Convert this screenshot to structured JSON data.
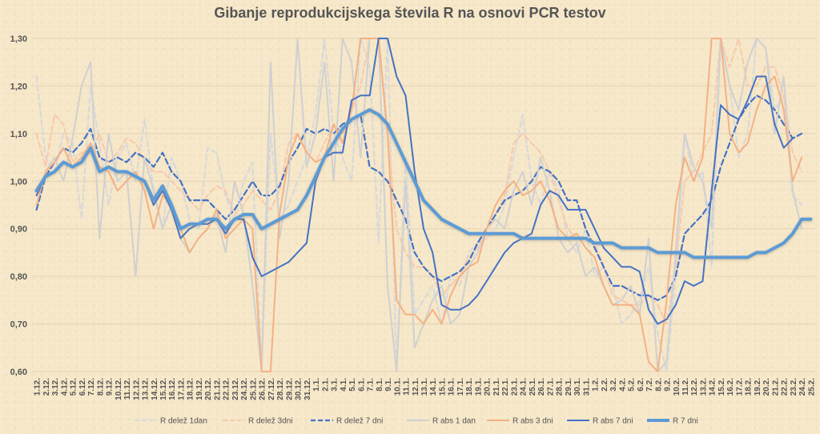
{
  "chart_data": {
    "type": "line",
    "title": "Gibanje reprodukcijskega števila R na osnovi PCR testov",
    "xlabel": "",
    "ylabel": "",
    "ylim": [
      0.6,
      1.3
    ],
    "yticks": [
      "0,60",
      "0,70",
      "0,80",
      "0,90",
      "1,00",
      "1,10",
      "1,20",
      "1,30"
    ],
    "grid": "horizontal",
    "legend_position": "bottom",
    "categories": [
      "1.12.",
      "2.12.",
      "3.12.",
      "4.12.",
      "5.12.",
      "6.12.",
      "7.12.",
      "8.12.",
      "9.12.",
      "10.12.",
      "11.12.",
      "12.12.",
      "13.12.",
      "14.12.",
      "15.12.",
      "16.12.",
      "17.12.",
      "18.12.",
      "19.12.",
      "20.12.",
      "21.12.",
      "22.12.",
      "23.12.",
      "24.12.",
      "25.12.",
      "26.12.",
      "27.12.",
      "28.12.",
      "29.12.",
      "30.12.",
      "31.12.",
      "1.1.",
      "2.1.",
      "3.1.",
      "4.1.",
      "5.1.",
      "6.1.",
      "7.1.",
      "8.1.",
      "9.1.",
      "10.1.",
      "11.1.",
      "12.1.",
      "13.1.",
      "14.1.",
      "15.1.",
      "16.1.",
      "17.1.",
      "18.1.",
      "19.1.",
      "20.1.",
      "21.1.",
      "22.1.",
      "23.1.",
      "24.1.",
      "25.1.",
      "26.1.",
      "27.1.",
      "28.1.",
      "29.1.",
      "30.1.",
      "31.1.",
      "1.2.",
      "2.2.",
      "3.2.",
      "4.2.",
      "5.2.",
      "6.2.",
      "7.2.",
      "8.2.",
      "9.2.",
      "10.2.",
      "11.2.",
      "12.2.",
      "13.2.",
      "14.2.",
      "15.2.",
      "16.2.",
      "17.2.",
      "18.2.",
      "19.2.",
      "20.2.",
      "21.2.",
      "22.2.",
      "23.2.",
      "24.2.",
      "25.2."
    ],
    "series": [
      {
        "name": "R delež 1dan",
        "color": "#d9d9d9",
        "style": "dash",
        "values": [
          1.22,
          1.05,
          1.02,
          1.1,
          1.08,
          0.92,
          1.2,
          1.08,
          0.95,
          1.05,
          1.08,
          1.0,
          1.13,
          0.98,
          0.9,
          1.05,
          1.0,
          0.92,
          0.9,
          1.07,
          1.06,
          0.97,
          0.92,
          1.0,
          1.04,
          0.6,
          1.1,
          0.92,
          0.95,
          1.0,
          1.05,
          1.14,
          1.3,
          1.1,
          1.05,
          1.0,
          1.3,
          1.24,
          0.87,
          1.3,
          0.6,
          1.05,
          0.72,
          0.75,
          0.78,
          0.7,
          0.8,
          0.78,
          0.85,
          0.87,
          0.88,
          0.9,
          0.95,
          1.05,
          1.14,
          1.0,
          0.95,
          1.02,
          0.98,
          0.88,
          0.85,
          0.9,
          0.8,
          0.82,
          0.78,
          0.7,
          0.72,
          0.75,
          0.82,
          0.68,
          0.6,
          0.8,
          1.1,
          1.0,
          1.02,
          0.82,
          1.3,
          1.2,
          1.05,
          1.1,
          1.3,
          1.28,
          1.15,
          1.18,
          0.97,
          0.95,
          null
        ]
      },
      {
        "name": "R delež 3dni",
        "color": "#f8cbad",
        "style": "dash",
        "values": [
          1.1,
          1.03,
          1.14,
          1.12,
          1.04,
          1.06,
          1.06,
          1.1,
          1.04,
          1.06,
          1.09,
          1.08,
          1.04,
          1.02,
          1.02,
          1.0,
          0.98,
          0.96,
          0.94,
          0.97,
          0.99,
          0.98,
          0.93,
          0.95,
          0.98,
          0.96,
          0.94,
          0.98,
          1.08,
          1.1,
          1.06,
          1.04,
          1.08,
          1.12,
          1.1,
          1.15,
          1.2,
          1.3,
          1.3,
          1.1,
          0.9,
          0.85,
          0.82,
          0.82,
          0.8,
          0.76,
          0.78,
          0.8,
          0.84,
          0.86,
          0.9,
          0.93,
          0.97,
          1.08,
          1.1,
          1.08,
          1.06,
          1.02,
          0.96,
          0.9,
          0.88,
          0.88,
          0.87,
          0.82,
          0.76,
          0.75,
          0.74,
          0.74,
          0.76,
          0.74,
          0.7,
          0.82,
          1.0,
          1.02,
          1.06,
          1.1,
          1.3,
          1.24,
          1.3,
          1.2,
          1.2,
          1.24,
          1.24,
          1.18,
          1.06,
          1.02,
          null
        ]
      },
      {
        "name": "R delež 7 dni",
        "color": "#4472c4",
        "style": "dash",
        "values": [
          0.94,
          1.01,
          1.04,
          1.07,
          1.06,
          1.08,
          1.11,
          1.05,
          1.04,
          1.05,
          1.04,
          1.06,
          1.05,
          1.03,
          1.06,
          1.02,
          1.0,
          0.96,
          0.96,
          0.96,
          0.94,
          0.92,
          0.94,
          0.97,
          1.0,
          0.97,
          0.97,
          0.99,
          1.04,
          1.07,
          1.11,
          1.1,
          1.11,
          1.1,
          1.12,
          1.13,
          1.14,
          1.03,
          1.02,
          1.0,
          0.96,
          0.92,
          0.85,
          0.82,
          0.8,
          0.79,
          0.8,
          0.81,
          0.83,
          0.87,
          0.9,
          0.93,
          0.96,
          0.97,
          0.98,
          1.0,
          1.03,
          1.02,
          1.0,
          0.96,
          0.96,
          0.9,
          0.86,
          0.82,
          0.78,
          0.78,
          0.77,
          0.76,
          0.76,
          0.75,
          0.76,
          0.8,
          0.89,
          0.91,
          0.93,
          0.96,
          1.03,
          1.08,
          1.13,
          1.16,
          1.18,
          1.17,
          1.15,
          1.12,
          1.09,
          1.1,
          null
        ]
      },
      {
        "name": "R abs 1 dan",
        "color": "#d0d0d0",
        "style": "solid",
        "values": [
          0.95,
          1.02,
          1.05,
          1.0,
          1.09,
          1.2,
          1.25,
          0.88,
          1.1,
          1.0,
          1.02,
          0.8,
          1.05,
          0.98,
          0.9,
          0.95,
          0.88,
          0.85,
          0.88,
          0.9,
          0.93,
          0.85,
          1.0,
          0.93,
          0.78,
          0.6,
          1.25,
          0.88,
          1.0,
          1.3,
          1.03,
          1.1,
          1.25,
          1.0,
          1.3,
          1.25,
          1.05,
          1.3,
          1.3,
          0.78,
          0.6,
          1.0,
          0.65,
          0.7,
          0.75,
          0.78,
          0.7,
          0.72,
          0.82,
          0.85,
          0.9,
          0.92,
          0.9,
          0.98,
          1.02,
          0.95,
          1.05,
          0.98,
          0.88,
          0.85,
          0.87,
          0.8,
          0.82,
          0.78,
          0.74,
          0.75,
          0.78,
          0.72,
          0.88,
          0.6,
          0.62,
          0.85,
          1.1,
          1.03,
          1.0,
          0.9,
          1.3,
          1.2,
          1.15,
          1.25,
          1.3,
          1.28,
          1.1,
          1.22,
          0.98,
          0.9,
          null
        ]
      },
      {
        "name": "R abs 3 dni",
        "color": "#f4b183",
        "style": "solid",
        "values": [
          0.95,
          1.02,
          1.04,
          1.07,
          1.03,
          1.05,
          1.08,
          1.03,
          1.02,
          0.98,
          1.0,
          1.02,
          0.98,
          0.9,
          0.97,
          0.95,
          0.9,
          0.85,
          0.88,
          0.9,
          0.94,
          0.88,
          0.9,
          0.92,
          0.9,
          0.6,
          0.6,
          0.93,
          1.05,
          1.1,
          1.06,
          1.04,
          1.05,
          1.12,
          1.08,
          1.15,
          1.3,
          1.3,
          1.3,
          1.1,
          0.75,
          0.72,
          0.72,
          0.7,
          0.73,
          0.7,
          0.76,
          0.8,
          0.82,
          0.83,
          0.9,
          0.95,
          0.98,
          1.0,
          0.97,
          0.98,
          1.0,
          0.96,
          0.9,
          0.88,
          0.89,
          0.86,
          0.84,
          0.78,
          0.74,
          0.74,
          0.74,
          0.72,
          0.62,
          0.6,
          0.75,
          0.95,
          1.05,
          1.0,
          1.05,
          1.3,
          1.3,
          1.1,
          1.06,
          1.08,
          1.15,
          1.2,
          1.22,
          1.15,
          1.0,
          1.05,
          null
        ]
      },
      {
        "name": "R abs 7 dni",
        "color": "#4472c4",
        "style": "solid",
        "values": [
          0.97,
          1.01,
          1.02,
          1.04,
          1.03,
          1.04,
          1.07,
          1.02,
          1.03,
          1.02,
          1.02,
          1.01,
          1.0,
          0.95,
          0.98,
          0.94,
          0.88,
          0.9,
          0.91,
          0.91,
          0.92,
          0.89,
          0.92,
          0.92,
          0.84,
          0.8,
          0.81,
          0.82,
          0.83,
          0.85,
          0.87,
          1.0,
          1.05,
          1.06,
          1.06,
          1.17,
          1.18,
          1.18,
          1.3,
          1.3,
          1.22,
          1.18,
          1.02,
          0.9,
          0.85,
          0.74,
          0.73,
          0.73,
          0.74,
          0.76,
          0.79,
          0.82,
          0.85,
          0.87,
          0.88,
          0.89,
          0.95,
          0.98,
          0.97,
          0.94,
          0.94,
          0.94,
          0.9,
          0.86,
          0.84,
          0.82,
          0.82,
          0.81,
          0.73,
          0.7,
          0.71,
          0.74,
          0.79,
          0.78,
          0.79,
          0.98,
          1.16,
          1.14,
          1.13,
          1.17,
          1.22,
          1.22,
          1.12,
          1.07,
          1.09,
          null,
          null
        ]
      },
      {
        "name": "R 7 dni",
        "color": "#5b9bd5",
        "style": "solid-thick",
        "values": [
          0.98,
          1.01,
          1.02,
          1.04,
          1.03,
          1.04,
          1.07,
          1.02,
          1.03,
          1.02,
          1.02,
          1.01,
          1.0,
          0.96,
          0.99,
          0.95,
          0.9,
          0.91,
          0.91,
          0.92,
          0.92,
          0.9,
          0.92,
          0.93,
          0.93,
          0.9,
          0.91,
          0.92,
          0.93,
          0.94,
          0.97,
          1.01,
          1.05,
          1.08,
          1.11,
          1.13,
          1.14,
          1.15,
          1.14,
          1.12,
          1.08,
          1.04,
          1.0,
          0.96,
          0.94,
          0.92,
          0.91,
          0.9,
          0.89,
          0.89,
          0.89,
          0.89,
          0.89,
          0.89,
          0.88,
          0.88,
          0.88,
          0.88,
          0.88,
          0.88,
          0.88,
          0.88,
          0.87,
          0.87,
          0.87,
          0.86,
          0.86,
          0.86,
          0.86,
          0.85,
          0.85,
          0.85,
          0.85,
          0.84,
          0.84,
          0.84,
          0.84,
          0.84,
          0.84,
          0.84,
          0.85,
          0.85,
          0.86,
          0.87,
          0.89,
          0.92,
          0.92
        ]
      }
    ]
  }
}
